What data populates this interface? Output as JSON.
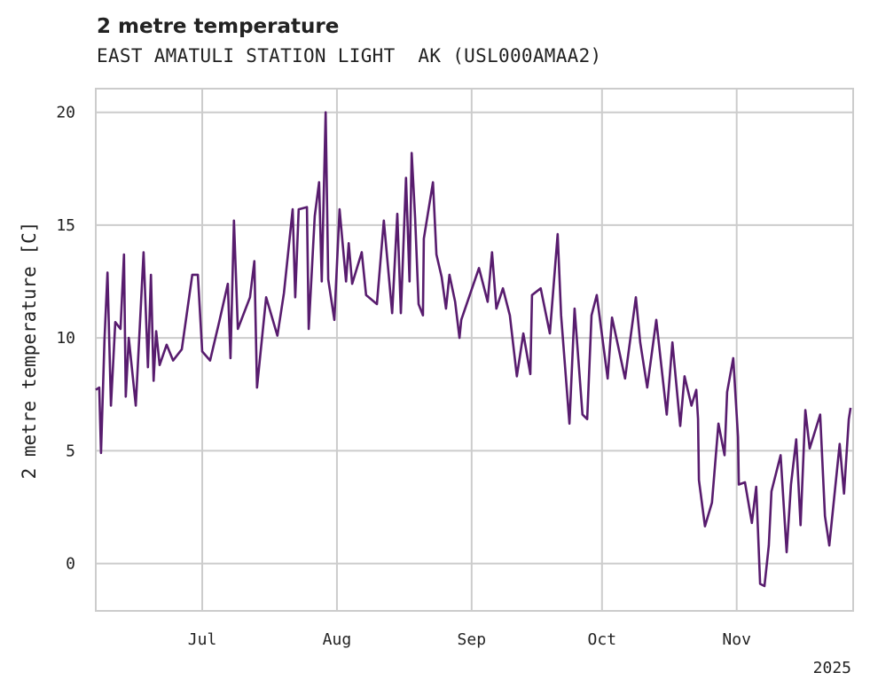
{
  "chart_data": {
    "type": "line",
    "title": "2 metre temperature",
    "subtitle": "EAST AMATULI STATION LIGHT  AK (USL000AMAA2)",
    "ylabel": "2 metre temperature [C]",
    "xlabel": "",
    "x_origin": "2025-06-06",
    "x_units": "days since x_origin",
    "xlim": [
      0,
      174.3
    ],
    "ylim": [
      -2.1,
      21.05
    ],
    "grid": true,
    "yticks": [
      0,
      5,
      10,
      15,
      20
    ],
    "ytick_labels": [
      "0",
      "5",
      "10",
      "15",
      "20"
    ],
    "xticks": [
      24.5,
      55.5,
      86.5,
      116.5,
      147.5
    ],
    "xtick_labels": [
      "Jul",
      "Aug",
      "Sep",
      "Oct",
      "Nov"
    ],
    "x_offset_label": "2025",
    "series": [
      {
        "name": "2 metre temperature",
        "color": "#581c6e",
        "x": [
          0,
          0.8,
          1.2,
          2.0,
          2.7,
          3.5,
          4.5,
          5.7,
          6.5,
          6.9,
          7.6,
          9.2,
          11.0,
          12.0,
          12.7,
          13.3,
          13.9,
          14.7,
          16.3,
          17.8,
          19.8,
          22.2,
          23.5,
          24.5,
          26.3,
          28.4,
          30.4,
          31.0,
          31.8,
          32.7,
          35.5,
          36.5,
          37.1,
          39.2,
          41.8,
          43.3,
          45.3,
          45.9,
          46.7,
          48.6,
          49.0,
          50.4,
          51.4,
          52.0,
          52.9,
          53.5,
          54.9,
          56.1,
          57.6,
          58.2,
          59.0,
          61.2,
          62.2,
          64.7,
          66.3,
          68.2,
          69.4,
          70.2,
          71.4,
          72.2,
          72.7,
          73.5,
          74.3,
          75.3,
          75.5,
          77.6,
          78.4,
          79.6,
          80.6,
          81.4,
          82.7,
          83.7,
          84.1,
          88.2,
          90.2,
          91.2,
          92.2,
          93.7,
          95.3,
          96.9,
          98.4,
          100.0,
          100.4,
          102.4,
          104.5,
          106.3,
          107.1,
          109.0,
          110.2,
          112.0,
          113.1,
          114.1,
          115.3,
          117.8,
          118.8,
          121.8,
          124.3,
          125.3,
          126.9,
          129.0,
          131.4,
          132.7,
          134.5,
          135.5,
          137.1,
          138.2,
          138.6,
          138.8,
          140.2,
          141.8,
          143.3,
          144.7,
          145.3,
          146.7,
          147.8,
          148.0,
          149.4,
          151.0,
          152.0,
          152.9,
          153.9,
          154.9,
          155.5,
          157.6,
          159.0,
          160.0,
          161.2,
          162.2,
          163.3,
          164.3,
          166.7,
          167.8,
          168.8,
          171.2,
          172.2,
          173.3,
          173.7
        ],
        "y": [
          7.7,
          7.8,
          4.9,
          9.9,
          12.9,
          7.0,
          10.7,
          10.4,
          13.7,
          7.4,
          10.0,
          7.0,
          13.8,
          8.7,
          12.8,
          8.1,
          10.3,
          8.8,
          9.7,
          9.0,
          9.5,
          12.8,
          12.8,
          9.4,
          9.0,
          10.7,
          12.4,
          9.1,
          15.2,
          10.4,
          11.8,
          13.4,
          7.8,
          11.8,
          10.1,
          12.0,
          15.7,
          11.8,
          15.7,
          15.8,
          10.4,
          15.4,
          16.9,
          12.5,
          20.0,
          12.6,
          10.8,
          15.7,
          12.5,
          14.2,
          12.4,
          13.8,
          11.9,
          11.5,
          15.2,
          11.1,
          15.5,
          11.1,
          17.1,
          12.5,
          18.2,
          15.3,
          11.5,
          11.0,
          14.4,
          16.9,
          13.7,
          12.7,
          11.3,
          12.8,
          11.6,
          10.0,
          10.8,
          13.1,
          11.6,
          13.8,
          11.3,
          12.2,
          11.0,
          8.3,
          10.2,
          8.4,
          11.9,
          12.2,
          10.2,
          14.6,
          11.0,
          6.2,
          11.3,
          6.6,
          6.4,
          11.0,
          11.9,
          8.2,
          10.9,
          8.2,
          11.8,
          9.8,
          7.8,
          10.8,
          6.6,
          9.8,
          6.1,
          8.3,
          7.0,
          7.7,
          6.4,
          3.7,
          1.65,
          2.7,
          6.2,
          4.8,
          7.6,
          9.1,
          5.6,
          3.5,
          3.6,
          1.8,
          3.4,
          -0.9,
          -1.0,
          0.8,
          3.2,
          4.8,
          0.5,
          3.5,
          5.5,
          1.7,
          6.8,
          5.1,
          6.6,
          2.1,
          0.8,
          5.3,
          3.1,
          6.4,
          6.9
        ]
      }
    ]
  }
}
